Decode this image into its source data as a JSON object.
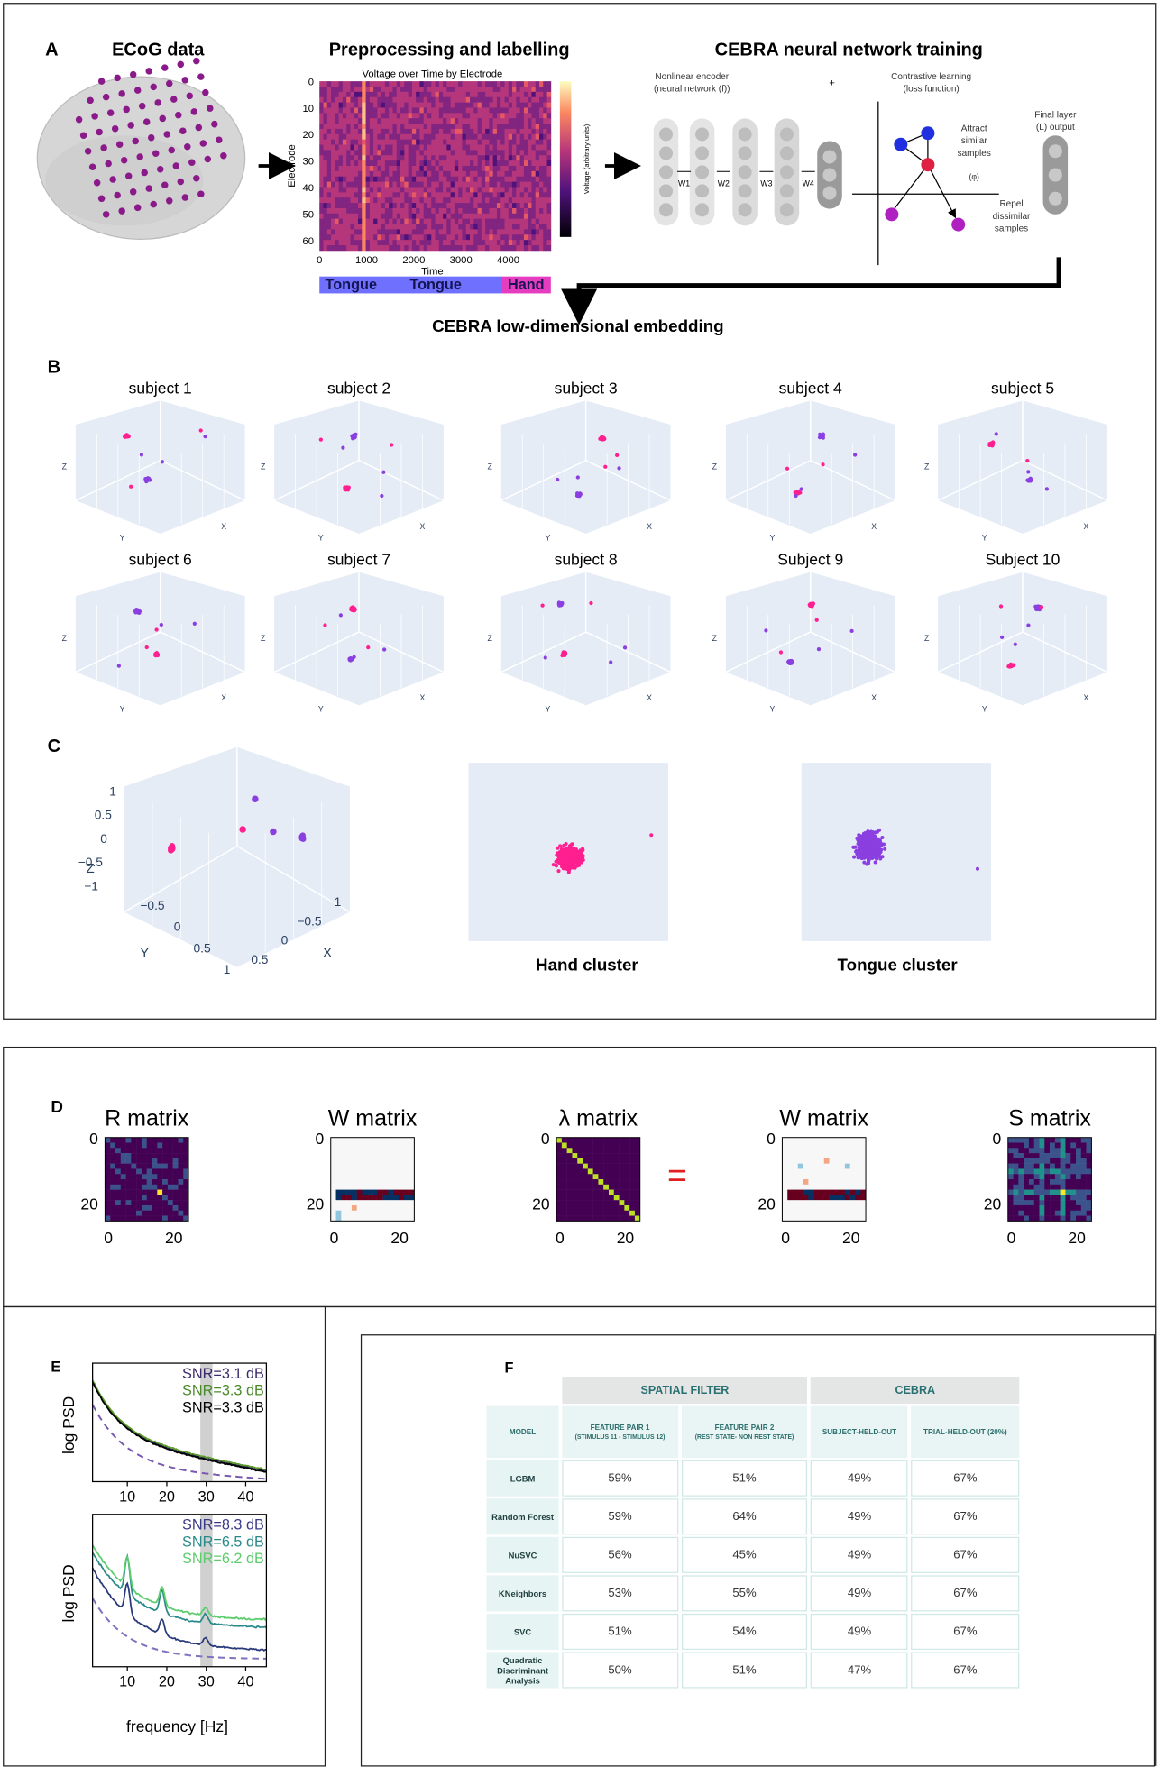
{
  "panel_a": {
    "label": "A",
    "ecog_title": "ECoG data",
    "preproc_title": "Preprocessing and labelling",
    "heatmap_title": "Voltage over Time by Electrode",
    "y_axis": "Electrode",
    "x_axis": "Time",
    "colorbar_label": "Voltage (arbitrary units)",
    "yticks": [
      "0",
      "10",
      "20",
      "30",
      "40",
      "50",
      "60"
    ],
    "xticks": [
      "0",
      "1000",
      "2000",
      "3000",
      "4000"
    ],
    "segments": [
      "Tongue",
      "Tongue",
      "Hand"
    ],
    "cebra_title": "CEBRA  neural network training",
    "encoder_label": [
      "Nonlinear encoder",
      "(neural network (f))"
    ],
    "plus": "+",
    "contrastive_label": [
      "Contrastive learning",
      "(loss function)"
    ],
    "weights": [
      "W1",
      "W2",
      "W3",
      "W4"
    ],
    "attract": [
      "Attract",
      "similar",
      "samples"
    ],
    "phi": "(φ)",
    "repel": [
      "Repel",
      "dissimilar",
      "samples"
    ],
    "final_layer": [
      "Final layer",
      "(L) output"
    ],
    "embedding_title": "CEBRA low-dimensional embedding"
  },
  "panel_b": {
    "label": "B",
    "subjects": [
      "subject 1",
      "subject 2",
      "subject 3",
      "subject 4",
      "subject 5",
      "subject 6",
      "subject 7",
      "subject 8",
      "Subject 9",
      "Subject 10"
    ],
    "axis_letters": [
      "Z",
      "Y",
      "X"
    ]
  },
  "panel_c": {
    "label": "C",
    "z_ticks": [
      "1",
      "0.5",
      "0",
      "−0.5",
      "−1"
    ],
    "y_ticks": [
      "−0.5",
      "0",
      "0.5",
      "1"
    ],
    "x_ticks": [
      "−1",
      "−0.5",
      "0",
      "0.5"
    ],
    "axis_letters": [
      "Z",
      "Y",
      "X"
    ],
    "hand": "Hand cluster",
    "tongue": "Tongue cluster"
  },
  "panel_d": {
    "label": "D",
    "matrices": [
      "R matrix",
      "W matrix",
      "λ matrix",
      "W matrix",
      "S matrix"
    ],
    "equals": "=",
    "ticks": [
      "0",
      "20"
    ]
  },
  "panel_e": {
    "label": "E",
    "y_axis": "log PSD",
    "x_axis": "frequency [Hz]",
    "xticks": [
      "10",
      "20",
      "30",
      "40"
    ],
    "top_snr": [
      "SNR=3.1 dB",
      "SNR=3.3 dB",
      "SNR=3.3 dB"
    ],
    "bottom_snr": [
      "SNR=8.3 dB",
      "SNR=6.5 dB",
      "SNR=6.2 dB"
    ]
  },
  "panel_f": {
    "label": "F",
    "groups": [
      "SPATIAL FILTER",
      "CEBRA"
    ],
    "headers": [
      {
        "title": "MODEL"
      },
      {
        "title": "FEATURE PAIR 1",
        "note": "(STIMULUS 11 - STIMULUS 12)"
      },
      {
        "title": "FEATURE PAIR 2",
        "note": "(REST STATE- NON REST STATE)"
      },
      {
        "title": "SUBJECT-HELD-OUT"
      },
      {
        "title": "TRIAL-HELD-OUT (20%)"
      }
    ],
    "rows": [
      [
        "LGBM",
        "59%",
        "51%",
        "49%",
        "67%"
      ],
      [
        "Random Forest",
        "59%",
        "64%",
        "49%",
        "67%"
      ],
      [
        "NuSVC",
        "56%",
        "45%",
        "49%",
        "67%"
      ],
      [
        "KNeighbors",
        "53%",
        "55%",
        "49%",
        "67%"
      ],
      [
        "SVC",
        "51%",
        "54%",
        "49%",
        "67%"
      ],
      [
        "Quadratic Discriminant Analysis",
        "50%",
        "51%",
        "47%",
        "67%"
      ]
    ]
  }
}
